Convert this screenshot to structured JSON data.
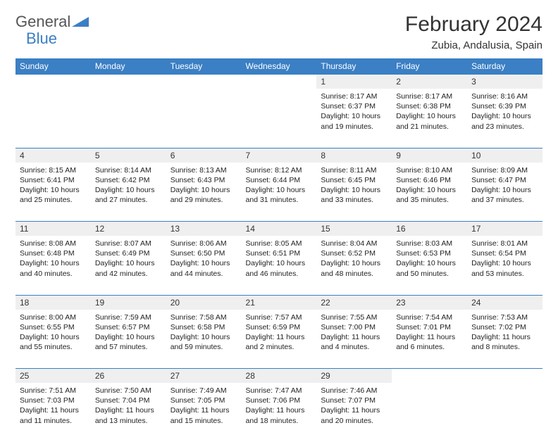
{
  "logo": {
    "text1": "General",
    "text2": "Blue"
  },
  "title": "February 2024",
  "location": "Zubia, Andalusia, Spain",
  "colors": {
    "header_bg": "#3b7fc4",
    "header_fg": "#ffffff",
    "daynum_bg": "#efefef",
    "border": "#3b7fc4"
  },
  "typography": {
    "title_fontsize": 30,
    "location_fontsize": 15,
    "header_fontsize": 12,
    "cell_fontsize": 10.5
  },
  "columns": [
    "Sunday",
    "Monday",
    "Tuesday",
    "Wednesday",
    "Thursday",
    "Friday",
    "Saturday"
  ],
  "weeks": [
    {
      "nums": [
        "",
        "",
        "",
        "",
        "1",
        "2",
        "3"
      ],
      "details": [
        "",
        "",
        "",
        "",
        "Sunrise: 8:17 AM\nSunset: 6:37 PM\nDaylight: 10 hours and 19 minutes.",
        "Sunrise: 8:17 AM\nSunset: 6:38 PM\nDaylight: 10 hours and 21 minutes.",
        "Sunrise: 8:16 AM\nSunset: 6:39 PM\nDaylight: 10 hours and 23 minutes."
      ]
    },
    {
      "nums": [
        "4",
        "5",
        "6",
        "7",
        "8",
        "9",
        "10"
      ],
      "details": [
        "Sunrise: 8:15 AM\nSunset: 6:41 PM\nDaylight: 10 hours and 25 minutes.",
        "Sunrise: 8:14 AM\nSunset: 6:42 PM\nDaylight: 10 hours and 27 minutes.",
        "Sunrise: 8:13 AM\nSunset: 6:43 PM\nDaylight: 10 hours and 29 minutes.",
        "Sunrise: 8:12 AM\nSunset: 6:44 PM\nDaylight: 10 hours and 31 minutes.",
        "Sunrise: 8:11 AM\nSunset: 6:45 PM\nDaylight: 10 hours and 33 minutes.",
        "Sunrise: 8:10 AM\nSunset: 6:46 PM\nDaylight: 10 hours and 35 minutes.",
        "Sunrise: 8:09 AM\nSunset: 6:47 PM\nDaylight: 10 hours and 37 minutes."
      ]
    },
    {
      "nums": [
        "11",
        "12",
        "13",
        "14",
        "15",
        "16",
        "17"
      ],
      "details": [
        "Sunrise: 8:08 AM\nSunset: 6:48 PM\nDaylight: 10 hours and 40 minutes.",
        "Sunrise: 8:07 AM\nSunset: 6:49 PM\nDaylight: 10 hours and 42 minutes.",
        "Sunrise: 8:06 AM\nSunset: 6:50 PM\nDaylight: 10 hours and 44 minutes.",
        "Sunrise: 8:05 AM\nSunset: 6:51 PM\nDaylight: 10 hours and 46 minutes.",
        "Sunrise: 8:04 AM\nSunset: 6:52 PM\nDaylight: 10 hours and 48 minutes.",
        "Sunrise: 8:03 AM\nSunset: 6:53 PM\nDaylight: 10 hours and 50 minutes.",
        "Sunrise: 8:01 AM\nSunset: 6:54 PM\nDaylight: 10 hours and 53 minutes."
      ]
    },
    {
      "nums": [
        "18",
        "19",
        "20",
        "21",
        "22",
        "23",
        "24"
      ],
      "details": [
        "Sunrise: 8:00 AM\nSunset: 6:55 PM\nDaylight: 10 hours and 55 minutes.",
        "Sunrise: 7:59 AM\nSunset: 6:57 PM\nDaylight: 10 hours and 57 minutes.",
        "Sunrise: 7:58 AM\nSunset: 6:58 PM\nDaylight: 10 hours and 59 minutes.",
        "Sunrise: 7:57 AM\nSunset: 6:59 PM\nDaylight: 11 hours and 2 minutes.",
        "Sunrise: 7:55 AM\nSunset: 7:00 PM\nDaylight: 11 hours and 4 minutes.",
        "Sunrise: 7:54 AM\nSunset: 7:01 PM\nDaylight: 11 hours and 6 minutes.",
        "Sunrise: 7:53 AM\nSunset: 7:02 PM\nDaylight: 11 hours and 8 minutes."
      ]
    },
    {
      "nums": [
        "25",
        "26",
        "27",
        "28",
        "29",
        "",
        ""
      ],
      "details": [
        "Sunrise: 7:51 AM\nSunset: 7:03 PM\nDaylight: 11 hours and 11 minutes.",
        "Sunrise: 7:50 AM\nSunset: 7:04 PM\nDaylight: 11 hours and 13 minutes.",
        "Sunrise: 7:49 AM\nSunset: 7:05 PM\nDaylight: 11 hours and 15 minutes.",
        "Sunrise: 7:47 AM\nSunset: 7:06 PM\nDaylight: 11 hours and 18 minutes.",
        "Sunrise: 7:46 AM\nSunset: 7:07 PM\nDaylight: 11 hours and 20 minutes.",
        "",
        ""
      ]
    }
  ]
}
